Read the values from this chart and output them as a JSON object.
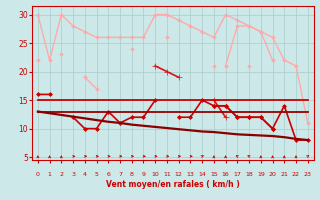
{
  "xlabel": "Vent moyen/en rafales ( km/h )",
  "background_color": "#cce8e8",
  "grid_color": "#aacccc",
  "x_ticks": [
    0,
    1,
    2,
    3,
    4,
    5,
    6,
    7,
    8,
    9,
    10,
    11,
    12,
    13,
    14,
    15,
    16,
    17,
    18,
    19,
    20,
    21,
    22,
    23
  ],
  "ylim": [
    4.5,
    31.5
  ],
  "xlim": [
    -0.5,
    23.5
  ],
  "yticks": [
    5,
    10,
    15,
    20,
    25,
    30
  ],
  "series": [
    {
      "color": "#ffaaaa",
      "linewidth": 1.0,
      "marker": "D",
      "markersize": 1.8,
      "y": [
        30,
        22,
        30,
        28,
        27,
        26,
        26,
        26,
        26,
        26,
        30,
        30,
        29,
        28,
        27,
        26,
        30,
        29,
        28,
        27,
        26,
        22,
        21,
        11
      ]
    },
    {
      "color": "#ffaaaa",
      "linewidth": 1.0,
      "marker": "D",
      "markersize": 1.8,
      "y": [
        22,
        null,
        23,
        null,
        19,
        17,
        null,
        null,
        24,
        null,
        null,
        26,
        null,
        null,
        null,
        21,
        null,
        null,
        21,
        null,
        22,
        null,
        null,
        null
      ]
    },
    {
      "color": "#ffaaaa",
      "linewidth": 1.0,
      "marker": "D",
      "markersize": 1.8,
      "y": [
        null,
        null,
        null,
        null,
        null,
        null,
        null,
        null,
        null,
        null,
        null,
        null,
        null,
        null,
        null,
        null,
        21,
        28,
        28,
        27,
        22,
        null,
        null,
        null
      ]
    },
    {
      "color": "#dd1111",
      "linewidth": 1.2,
      "marker": "+",
      "markersize": 4,
      "y": [
        null,
        null,
        null,
        null,
        null,
        null,
        null,
        null,
        null,
        null,
        21,
        20,
        19,
        null,
        null,
        15,
        12,
        null,
        null,
        null,
        null,
        null,
        null,
        null
      ]
    },
    {
      "color": "#cc0000",
      "linewidth": 1.2,
      "marker": "D",
      "markersize": 2.0,
      "y": [
        16,
        16,
        null,
        12,
        10,
        10,
        13,
        11,
        12,
        12,
        15,
        null,
        12,
        12,
        15,
        14,
        14,
        12,
        12,
        12,
        10,
        null,
        null,
        null
      ]
    },
    {
      "color": "#cc0000",
      "linewidth": 1.2,
      "marker": "D",
      "markersize": 2.0,
      "y": [
        null,
        null,
        null,
        null,
        null,
        null,
        null,
        null,
        null,
        null,
        null,
        null,
        null,
        null,
        null,
        14,
        14,
        12,
        12,
        12,
        10,
        14,
        8,
        8
      ]
    },
    {
      "color": "#cc0000",
      "linewidth": 1.3,
      "marker": null,
      "markersize": 0,
      "y": [
        15,
        15,
        15,
        15,
        15,
        15,
        15,
        15,
        15,
        15,
        15,
        15,
        15,
        15,
        15,
        15,
        15,
        15,
        15,
        15,
        15,
        15,
        15,
        15
      ]
    },
    {
      "color": "#990000",
      "linewidth": 1.3,
      "marker": null,
      "markersize": 0,
      "y": [
        13,
        13,
        13,
        13,
        13,
        13,
        13,
        13,
        13,
        13,
        13,
        13,
        13,
        13,
        13,
        13,
        13,
        13,
        13,
        13,
        13,
        13,
        13,
        13
      ]
    },
    {
      "color": "#880000",
      "linewidth": 1.6,
      "marker": null,
      "markersize": 0,
      "y": [
        13,
        12.7,
        12.4,
        12.1,
        11.8,
        11.5,
        11.2,
        11.0,
        10.7,
        10.5,
        10.3,
        10.1,
        9.9,
        9.7,
        9.5,
        9.4,
        9.2,
        9.0,
        8.9,
        8.8,
        8.7,
        8.5,
        8.2,
        8.0
      ]
    }
  ],
  "arrows": [
    0,
    0,
    0,
    90,
    90,
    90,
    90,
    90,
    90,
    90,
    90,
    90,
    90,
    90,
    45,
    0,
    0,
    315,
    315,
    0,
    0,
    0,
    0,
    45
  ],
  "arrow_color": "#cc0000"
}
